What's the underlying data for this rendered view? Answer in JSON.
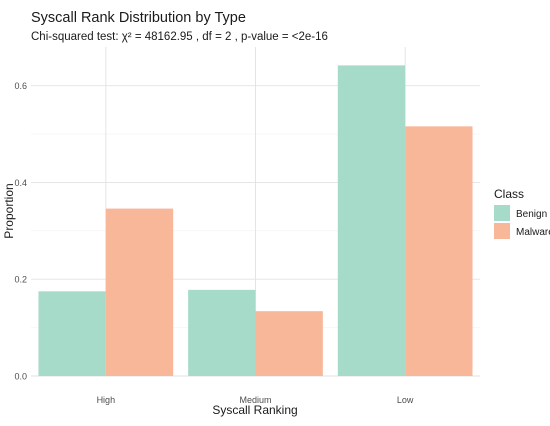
{
  "chart_data": {
    "type": "bar",
    "title": "Syscall Rank Distribution by Type",
    "subtitle": "Chi-squared test: χ² = 48162.95 , df = 2 , p-value = <2e-16",
    "xlabel": "Syscall Ranking",
    "ylabel": "Proportion",
    "categories": [
      "High",
      "Medium",
      "Low"
    ],
    "series": [
      {
        "name": "Benign",
        "values": [
          0.175,
          0.178,
          0.642
        ],
        "color": "#a6dbc9"
      },
      {
        "name": "Malware",
        "values": [
          0.346,
          0.134,
          0.516
        ],
        "color": "#f9b79a"
      }
    ],
    "ylim": [
      0,
      0.68
    ],
    "yticks": [
      0,
      0.2,
      0.4,
      0.6
    ],
    "ytick_labels": [
      "0.0",
      "0.2",
      "0.4",
      "0.6"
    ],
    "grid": true,
    "legend": {
      "title": "Class",
      "placement": "right"
    }
  }
}
